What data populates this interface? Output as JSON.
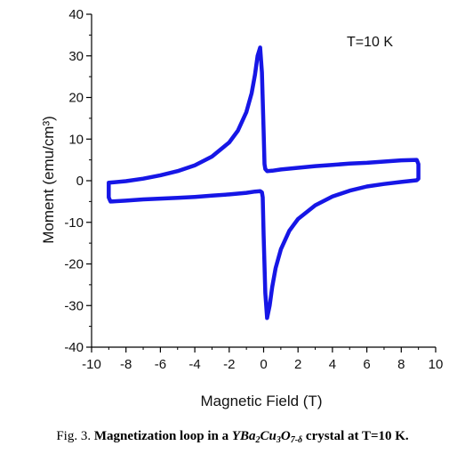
{
  "chart_data": {
    "type": "line",
    "title": "",
    "xlabel": "Magnetic Field (T)",
    "ylabel": "Moment (emu/cm³)",
    "xlim": [
      -10,
      10
    ],
    "ylim": [
      -40,
      40
    ],
    "xticks": [
      "-10",
      "-8",
      "-6",
      "-4",
      "-2",
      "0",
      "2",
      "4",
      "6",
      "8",
      "10"
    ],
    "yticks": [
      "-40",
      "-30",
      "-20",
      "-10",
      "0",
      "10",
      "20",
      "30",
      "40"
    ],
    "annotation": "T=10 K",
    "grid": false,
    "legend": "none",
    "color": "#1616e6",
    "series": [
      {
        "x": [
          -9.0,
          -8.0,
          -7.0,
          -6.0,
          -5.0,
          -4.0,
          -3.0,
          -2.0,
          -1.5,
          -1.0,
          -0.7,
          -0.5,
          -0.35,
          -0.2,
          -0.1,
          0.0,
          0.05,
          0.1,
          0.2,
          0.5,
          1.0,
          2.0,
          3.0,
          4.0,
          5.0,
          6.0,
          7.0,
          8.0,
          8.9,
          9.0,
          9.0,
          8.9,
          8.0,
          7.0,
          6.0,
          5.0,
          4.0,
          3.0,
          2.0,
          1.5,
          1.0,
          0.7,
          0.5,
          0.35,
          0.2,
          0.1,
          0.0,
          -0.05,
          -0.1,
          -0.2,
          -0.5,
          -1.0,
          -2.0,
          -3.0,
          -4.0,
          -5.0,
          -6.0,
          -7.0,
          -8.0,
          -8.9,
          -9.0,
          -9.0
        ],
        "y": [
          -0.5,
          -0.1,
          0.5,
          1.3,
          2.3,
          3.7,
          5.8,
          9.2,
          12.0,
          16.5,
          21.0,
          25.5,
          30.0,
          32.0,
          26.0,
          12.0,
          4.0,
          2.8,
          2.3,
          2.4,
          2.7,
          3.1,
          3.5,
          3.8,
          4.1,
          4.3,
          4.6,
          4.9,
          5.0,
          4.0,
          0.5,
          0.1,
          -0.3,
          -0.8,
          -1.4,
          -2.4,
          -3.8,
          -5.9,
          -9.2,
          -12.0,
          -16.5,
          -21.0,
          -25.5,
          -30.0,
          -33.0,
          -27.0,
          -13.0,
          -4.0,
          -2.8,
          -2.5,
          -2.6,
          -2.9,
          -3.3,
          -3.6,
          -3.9,
          -4.1,
          -4.3,
          -4.5,
          -4.8,
          -5.0,
          -4.0,
          -0.5
        ]
      }
    ]
  },
  "caption": {
    "prefix": "Fig. 3. ",
    "bold_lead": "Magnetization loop in a ",
    "formula_parts": [
      "YBa",
      "2",
      "Cu",
      "3",
      "O",
      "7-δ"
    ],
    "bold_tail": " crystal at T=10 K."
  }
}
